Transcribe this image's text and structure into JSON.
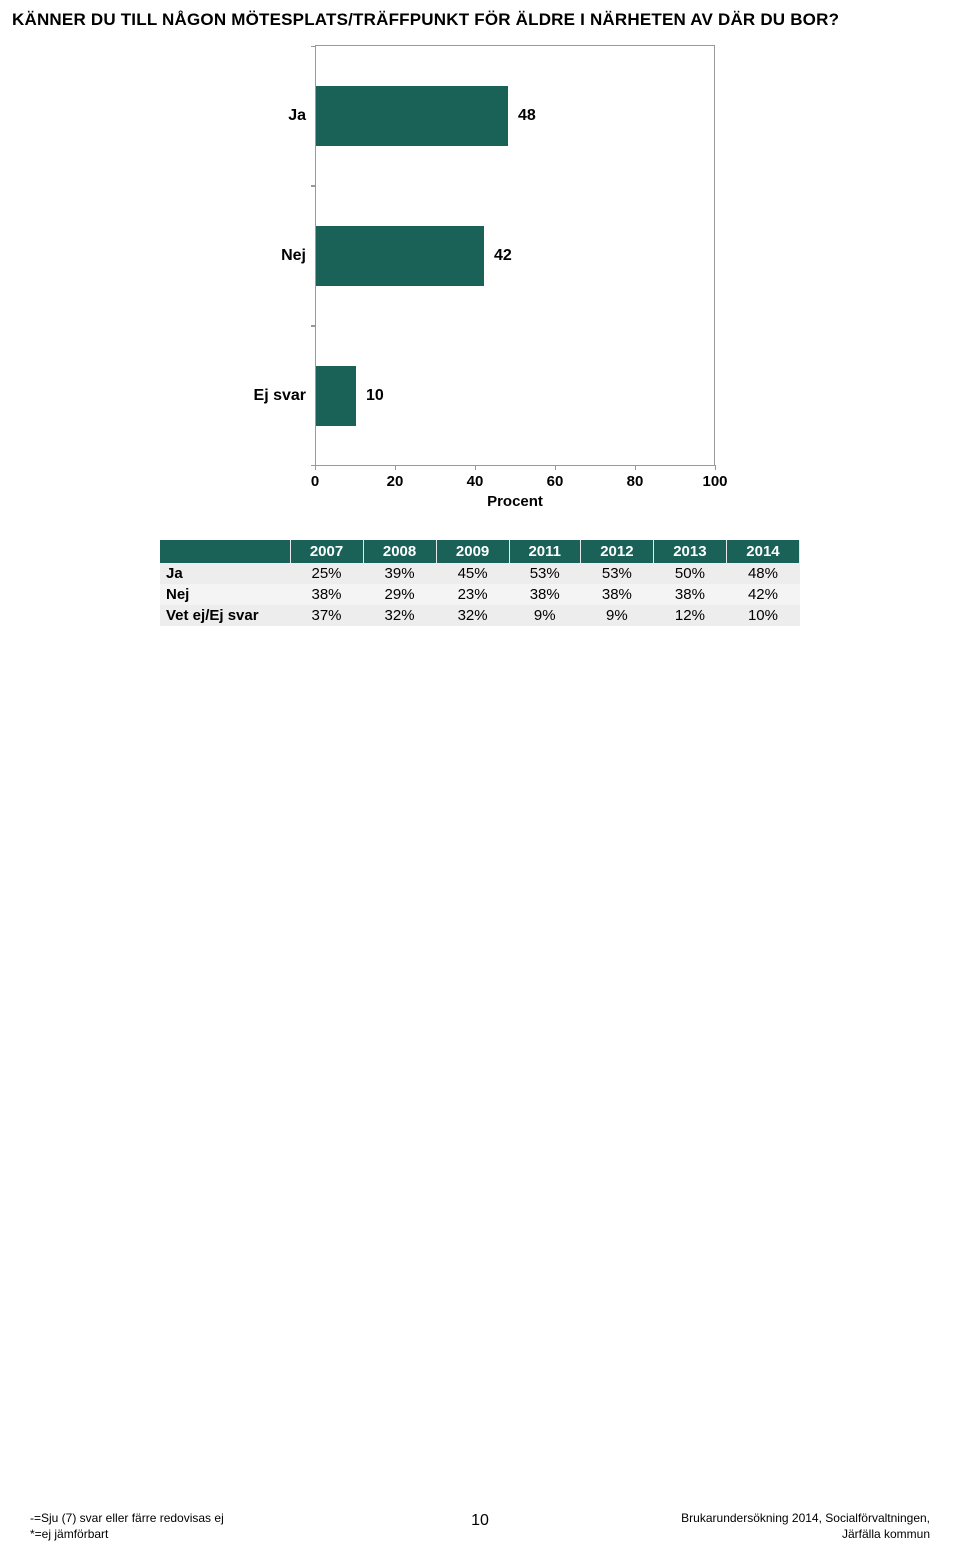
{
  "title": "KÄNNER DU TILL NÅGON MÖTESPLATS/TRÄFFPUNKT FÖR ÄLDRE I NÄRHETEN AV DÄR DU BOR?",
  "chart": {
    "type": "bar",
    "x_title": "Procent",
    "xlim": [
      0,
      100
    ],
    "xtick_step": 20,
    "xticks": [
      0,
      20,
      40,
      60,
      80,
      100
    ],
    "bar_color": "#1a6158",
    "axis_color": "#999999",
    "label_fontsize": 16,
    "tick_fontsize": 15,
    "bars": [
      {
        "label": "Ja",
        "value": 48
      },
      {
        "label": "Nej",
        "value": 42
      },
      {
        "label": "Ej svar",
        "value": 10
      }
    ]
  },
  "table": {
    "header_bg": "#1a6158",
    "header_fg": "#ffffff",
    "row_bg_odd": "#ededed",
    "row_bg_even": "#f4f4f4",
    "columns": [
      "",
      "2007",
      "2008",
      "2009",
      "2011",
      "2012",
      "2013",
      "2014"
    ],
    "rows": [
      [
        "Ja",
        "25%",
        "39%",
        "45%",
        "53%",
        "53%",
        "50%",
        "48%"
      ],
      [
        "Nej",
        "38%",
        "29%",
        "23%",
        "38%",
        "38%",
        "38%",
        "42%"
      ],
      [
        "Vet ej/Ej svar",
        "37%",
        "32%",
        "32%",
        "9%",
        "9%",
        "12%",
        "10%"
      ]
    ]
  },
  "footer": {
    "left_line1": "-=Sju (7) svar eller färre redovisas ej",
    "left_line2": "*=ej jämförbart",
    "page_number": "10",
    "right_line1": "Brukarundersökning 2014, Socialförvaltningen,",
    "right_line2": "Järfälla kommun"
  }
}
